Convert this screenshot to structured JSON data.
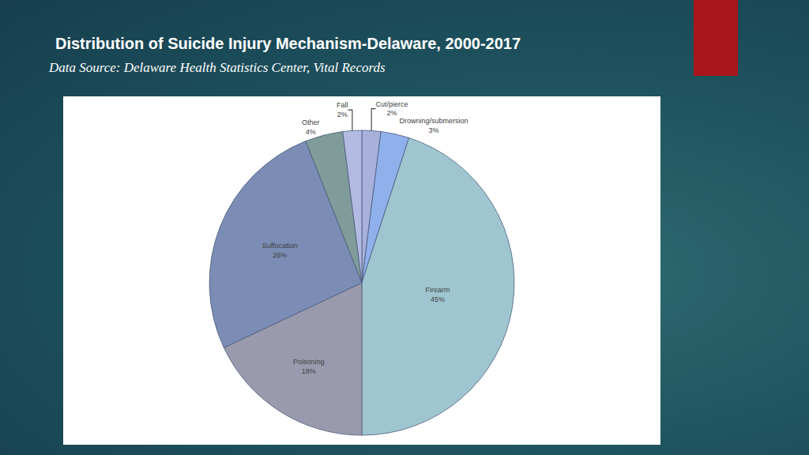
{
  "chart_data": {
    "type": "pie",
    "title": "Distribution of Suicide Injury Mechanism-Delaware, 2000-2017",
    "subtitle": "Data Source: Delaware Health Statistics Center, Vital Records",
    "categories": [
      "Cut/pierce",
      "Drowning/submersion",
      "Firearm",
      "Poisoning",
      "Suffocation",
      "Other",
      "Fall"
    ],
    "values": [
      2,
      3,
      45,
      18,
      26,
      4,
      2
    ],
    "value_labels": [
      "2%",
      "3%",
      "45%",
      "18%",
      "26%",
      "4%",
      "2%"
    ],
    "colors": [
      "#a7b1db",
      "#8fb0ea",
      "#9fc6d0",
      "#9a9aae",
      "#7b8db4",
      "#7f9c9a",
      "#b4bbe3"
    ],
    "data_labels": true
  }
}
